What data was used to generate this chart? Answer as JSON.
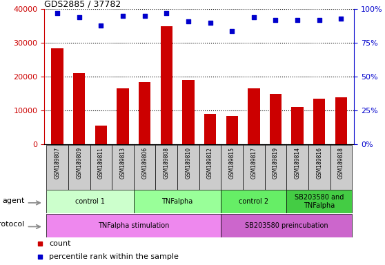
{
  "title": "GDS2885 / 37782",
  "samples": [
    "GSM189807",
    "GSM189809",
    "GSM189811",
    "GSM189813",
    "GSM189806",
    "GSM189808",
    "GSM189810",
    "GSM189812",
    "GSM189815",
    "GSM189817",
    "GSM189819",
    "GSM189814",
    "GSM189816",
    "GSM189818"
  ],
  "counts": [
    28500,
    21000,
    5500,
    16500,
    18500,
    35000,
    19000,
    9000,
    8500,
    16500,
    15000,
    11000,
    13500,
    14000
  ],
  "percentile_ranks": [
    97,
    94,
    88,
    95,
    95,
    97,
    91,
    90,
    84,
    94,
    92,
    92,
    92,
    93
  ],
  "bar_color": "#cc0000",
  "scatter_color": "#0000cc",
  "ylim_left": [
    0,
    40000
  ],
  "ylim_right": [
    0,
    100
  ],
  "yticks_left": [
    0,
    10000,
    20000,
    30000,
    40000
  ],
  "yticks_right": [
    0,
    25,
    50,
    75,
    100
  ],
  "agent_groups": [
    {
      "label": "control 1",
      "start": 0,
      "end": 3,
      "color": "#ccffcc"
    },
    {
      "label": "TNFalpha",
      "start": 4,
      "end": 7,
      "color": "#99ff99"
    },
    {
      "label": "control 2",
      "start": 8,
      "end": 10,
      "color": "#66ee66"
    },
    {
      "label": "SB203580 and\nTNFalpha",
      "start": 11,
      "end": 13,
      "color": "#44cc44"
    }
  ],
  "protocol_groups": [
    {
      "label": "TNFalpha stimulation",
      "start": 0,
      "end": 7,
      "color": "#ee88ee"
    },
    {
      "label": "SB203580 preincubation",
      "start": 8,
      "end": 13,
      "color": "#cc66cc"
    }
  ],
  "legend_count_label": "count",
  "legend_pct_label": "percentile rank within the sample",
  "xlabel_agent": "agent",
  "xlabel_protocol": "protocol",
  "xtick_bg": "#cccccc",
  "fig_bg": "#ffffff"
}
